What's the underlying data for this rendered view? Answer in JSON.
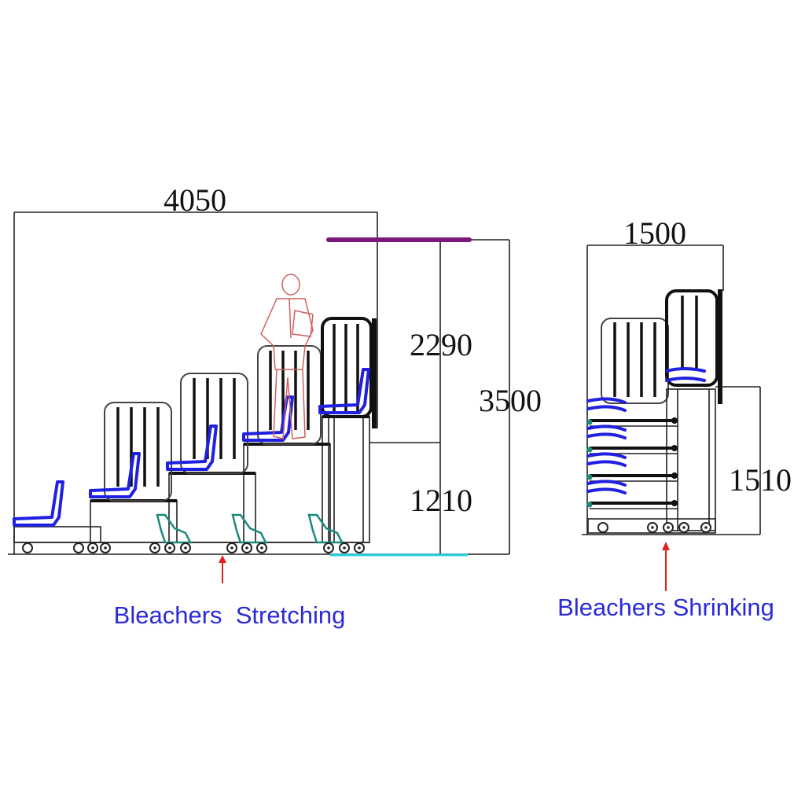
{
  "left_diagram": {
    "width_label": "4050",
    "upper_height_label": "2290",
    "lower_height_label": "1210",
    "total_height_label": "3500",
    "caption": "Bleachers  Stretching"
  },
  "right_diagram": {
    "width_label": "1500",
    "height_label": "1510",
    "caption": "Bleachers Shrinking"
  },
  "colors": {
    "caption": "#2a2ad8",
    "seat": "#2020e0",
    "arrow": "#e02020",
    "person": "#d06060",
    "roof_bar": "#7a1a7a",
    "floor_marker": "#22d0e0",
    "foot": "#1a8a7a"
  }
}
